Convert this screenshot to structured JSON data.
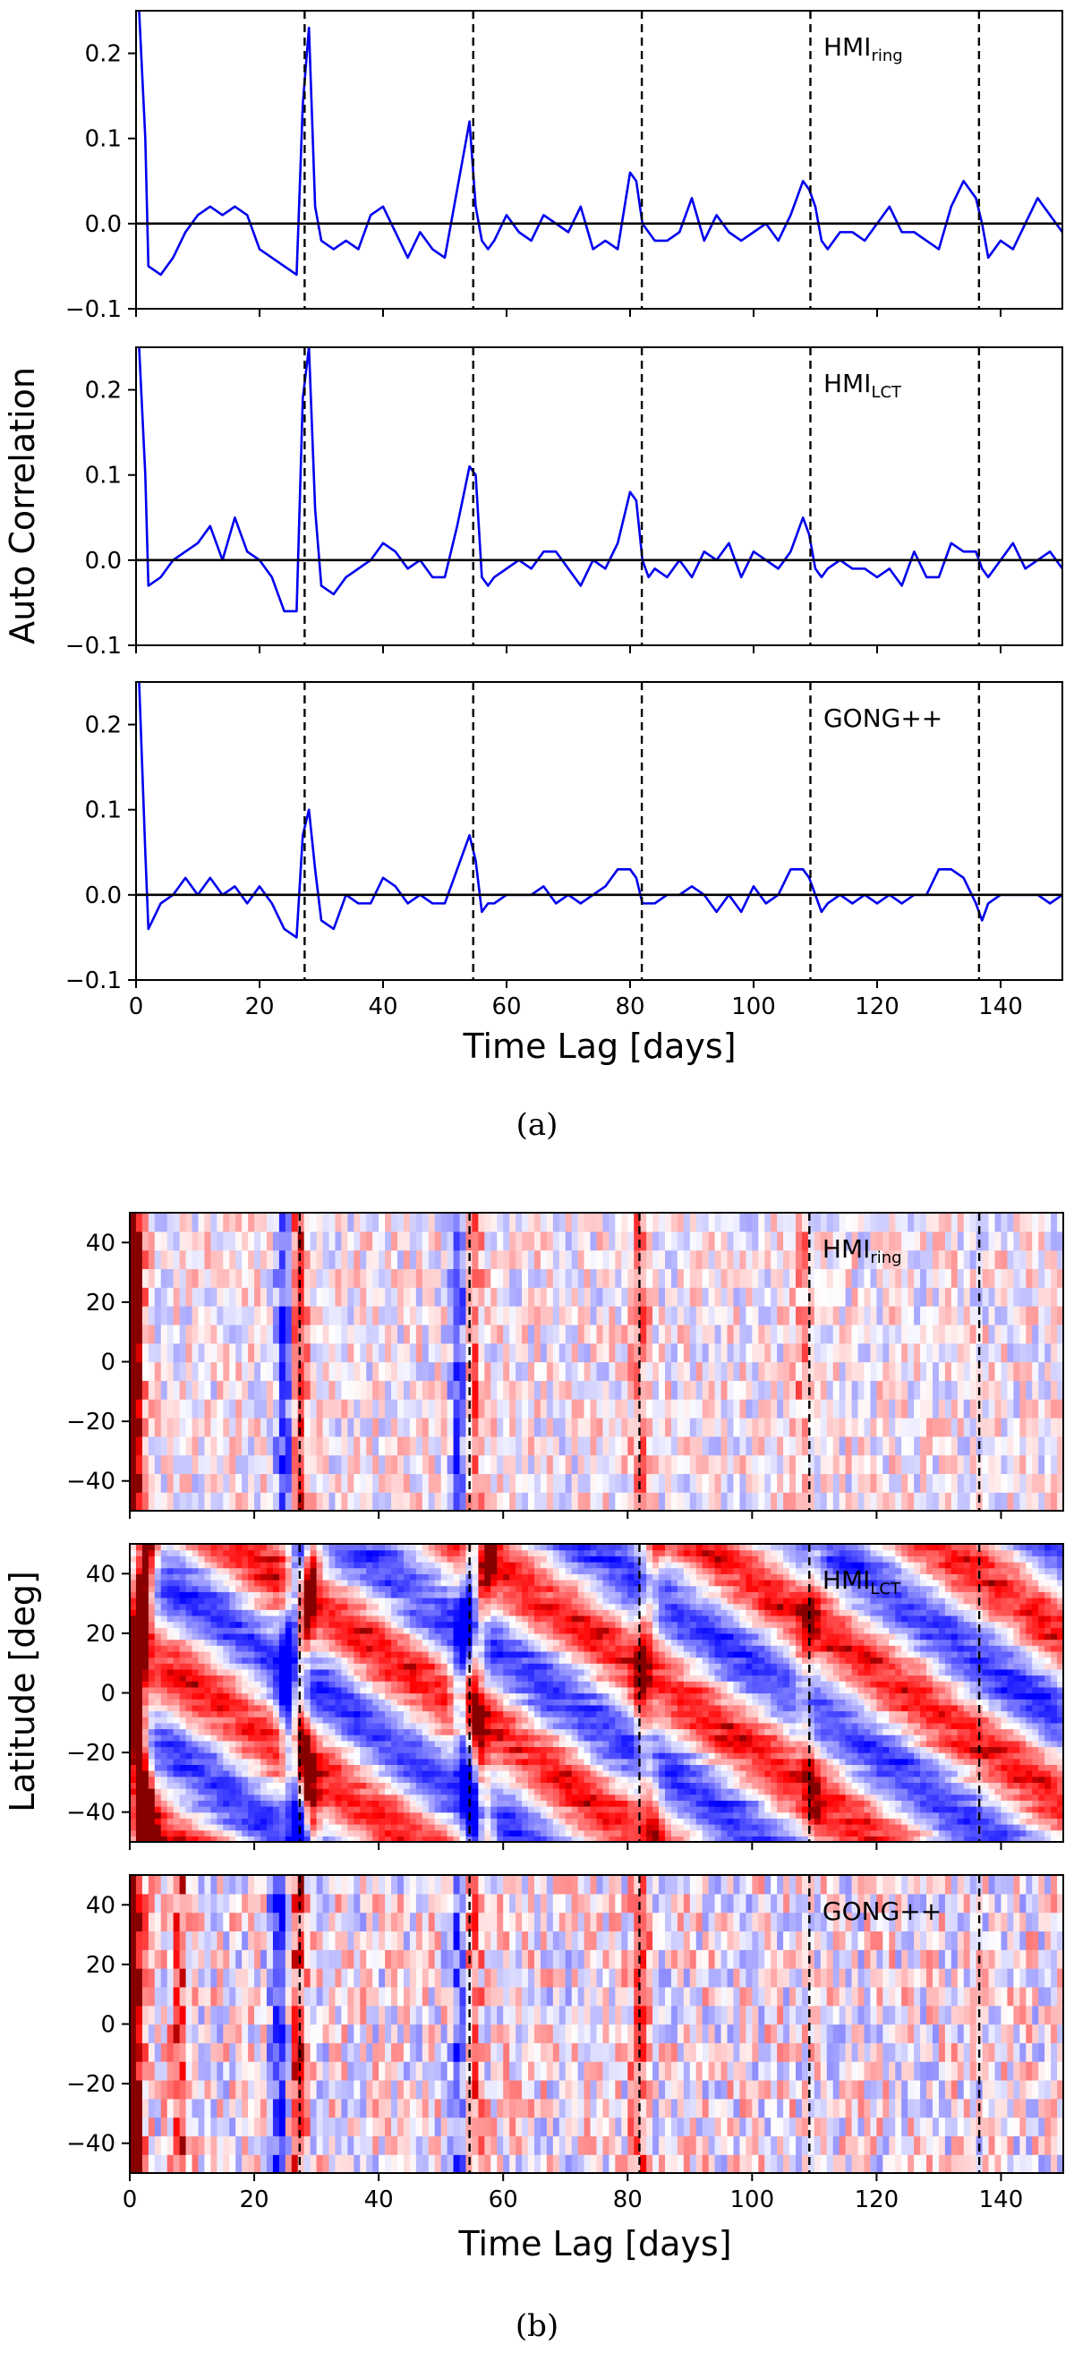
{
  "figure_a": {
    "caption": "(a)",
    "ylabel": "Auto Correlation",
    "xlabel": "Time Lag [days]"
  },
  "figure_b": {
    "caption": "(b)",
    "ylabel": "Latitude [deg]",
    "xlabel": "Time Lag [days]"
  },
  "colors": {
    "line": "#0000ee",
    "zero_line": "#000000",
    "vline": "#000000",
    "heat_positive": "#cc0000",
    "heat_negative": "#0000cc"
  },
  "chart_data": [
    {
      "type": "line",
      "figure": "a",
      "panel_label": {
        "main": "HMI",
        "sub": "ring"
      },
      "xlim": [
        0,
        150
      ],
      "ylim": [
        -0.1,
        0.25
      ],
      "xticks": [
        0,
        20,
        40,
        60,
        80,
        100,
        120,
        140
      ],
      "yticks": [
        -0.1,
        0.0,
        0.1,
        0.2
      ],
      "ytick_labels": [
        "−0.1",
        "0.0",
        "0.1",
        "0.2"
      ],
      "show_x_tick_labels": false,
      "hline": 0.0,
      "vlines": [
        27.3,
        54.6,
        81.9,
        109.2,
        136.5
      ],
      "series": [
        {
          "name": "HMI ring",
          "x": [
            0.5,
            1.5,
            2,
            4,
            6,
            8,
            10,
            12,
            14,
            16,
            18,
            20,
            22,
            24,
            26,
            27,
            28,
            29,
            30,
            32,
            34,
            36,
            38,
            40,
            42,
            44,
            46,
            48,
            50,
            52,
            54,
            55,
            56,
            57,
            58,
            60,
            62,
            64,
            66,
            68,
            70,
            72,
            74,
            76,
            78,
            80,
            81,
            82,
            83,
            84,
            86,
            88,
            90,
            92,
            94,
            96,
            98,
            100,
            102,
            104,
            106,
            108,
            109,
            110,
            111,
            112,
            114,
            116,
            118,
            120,
            122,
            124,
            126,
            128,
            130,
            132,
            134,
            136,
            137,
            138,
            140,
            142,
            144,
            146,
            148,
            150
          ],
          "y": [
            0.25,
            0.1,
            -0.05,
            -0.06,
            -0.04,
            -0.01,
            0.01,
            0.02,
            0.01,
            0.02,
            0.01,
            -0.03,
            -0.04,
            -0.05,
            -0.06,
            0.14,
            0.23,
            0.02,
            -0.02,
            -0.03,
            -0.02,
            -0.03,
            0.01,
            0.02,
            -0.01,
            -0.04,
            -0.01,
            -0.03,
            -0.04,
            0.04,
            0.12,
            0.02,
            -0.02,
            -0.03,
            -0.02,
            0.01,
            -0.01,
            -0.02,
            0.01,
            0.0,
            -0.01,
            0.02,
            -0.03,
            -0.02,
            -0.03,
            0.06,
            0.05,
            0.0,
            -0.01,
            -0.02,
            -0.02,
            -0.01,
            0.03,
            -0.02,
            0.01,
            -0.01,
            -0.02,
            -0.01,
            0.0,
            -0.02,
            0.01,
            0.05,
            0.04,
            0.02,
            -0.02,
            -0.03,
            -0.01,
            -0.01,
            -0.02,
            0.0,
            0.02,
            -0.01,
            -0.01,
            -0.02,
            -0.03,
            0.02,
            0.05,
            0.03,
            0.0,
            -0.04,
            -0.02,
            -0.03,
            0.0,
            0.03,
            0.01,
            -0.01
          ]
        }
      ]
    },
    {
      "type": "line",
      "figure": "a",
      "panel_label": {
        "main": "HMI",
        "sub": "LCT"
      },
      "xlim": [
        0,
        150
      ],
      "ylim": [
        -0.1,
        0.25
      ],
      "xticks": [
        0,
        20,
        40,
        60,
        80,
        100,
        120,
        140
      ],
      "yticks": [
        -0.1,
        0.0,
        0.1,
        0.2
      ],
      "ytick_labels": [
        "−0.1",
        "0.0",
        "0.1",
        "0.2"
      ],
      "show_x_tick_labels": false,
      "hline": 0.0,
      "vlines": [
        27.3,
        54.6,
        81.9,
        109.2,
        136.5
      ],
      "series": [
        {
          "name": "HMI LCT",
          "x": [
            0.5,
            1.5,
            2,
            4,
            6,
            8,
            10,
            12,
            14,
            16,
            18,
            20,
            22,
            24,
            26,
            27,
            28,
            29,
            30,
            32,
            34,
            36,
            38,
            40,
            42,
            44,
            46,
            48,
            50,
            52,
            54,
            55,
            56,
            57,
            58,
            60,
            62,
            64,
            66,
            68,
            70,
            72,
            74,
            76,
            78,
            80,
            81,
            82,
            83,
            84,
            86,
            88,
            90,
            92,
            94,
            96,
            98,
            100,
            102,
            104,
            106,
            108,
            109,
            110,
            111,
            112,
            114,
            116,
            118,
            120,
            122,
            124,
            126,
            128,
            130,
            132,
            134,
            136,
            137,
            138,
            140,
            142,
            144,
            146,
            148,
            150
          ],
          "y": [
            0.25,
            0.1,
            -0.03,
            -0.02,
            0.0,
            0.01,
            0.02,
            0.04,
            0.0,
            0.05,
            0.01,
            0.0,
            -0.02,
            -0.06,
            -0.06,
            0.19,
            0.25,
            0.06,
            -0.03,
            -0.04,
            -0.02,
            -0.01,
            0.0,
            0.02,
            0.01,
            -0.01,
            0.0,
            -0.02,
            -0.02,
            0.04,
            0.11,
            0.1,
            -0.02,
            -0.03,
            -0.02,
            -0.01,
            0.0,
            -0.01,
            0.01,
            0.01,
            -0.01,
            -0.03,
            0.0,
            -0.01,
            0.02,
            0.08,
            0.07,
            0.0,
            -0.02,
            -0.01,
            -0.02,
            0.0,
            -0.02,
            0.01,
            0.0,
            0.02,
            -0.02,
            0.01,
            0.0,
            -0.01,
            0.01,
            0.05,
            0.03,
            -0.01,
            -0.02,
            -0.01,
            0.0,
            -0.01,
            -0.01,
            -0.02,
            -0.01,
            -0.03,
            0.01,
            -0.02,
            -0.02,
            0.02,
            0.01,
            0.01,
            -0.01,
            -0.02,
            0.0,
            0.02,
            -0.01,
            0.0,
            0.01,
            -0.01
          ]
        }
      ]
    },
    {
      "type": "line",
      "figure": "a",
      "panel_label": {
        "main": "GONG++",
        "sub": ""
      },
      "xlim": [
        0,
        150
      ],
      "ylim": [
        -0.1,
        0.25
      ],
      "xticks": [
        0,
        20,
        40,
        60,
        80,
        100,
        120,
        140
      ],
      "xtick_labels": [
        "0",
        "20",
        "40",
        "60",
        "80",
        "100",
        "120",
        "140"
      ],
      "yticks": [
        -0.1,
        0.0,
        0.1,
        0.2
      ],
      "ytick_labels": [
        "−0.1",
        "0.0",
        "0.1",
        "0.2"
      ],
      "show_x_tick_labels": true,
      "hline": 0.0,
      "vlines": [
        27.3,
        54.6,
        81.9,
        109.2,
        136.5
      ],
      "series": [
        {
          "name": "GONG++",
          "x": [
            0.5,
            1.5,
            2,
            4,
            6,
            8,
            10,
            12,
            14,
            16,
            18,
            20,
            22,
            24,
            26,
            27,
            28,
            29,
            30,
            32,
            34,
            36,
            38,
            40,
            42,
            44,
            46,
            48,
            50,
            52,
            54,
            55,
            56,
            57,
            58,
            60,
            62,
            64,
            66,
            68,
            70,
            72,
            74,
            76,
            78,
            80,
            81,
            82,
            83,
            84,
            86,
            88,
            90,
            92,
            94,
            96,
            98,
            100,
            102,
            104,
            106,
            108,
            109,
            110,
            111,
            112,
            114,
            116,
            118,
            120,
            122,
            124,
            126,
            128,
            130,
            132,
            134,
            136,
            137,
            138,
            140,
            142,
            144,
            146,
            148,
            150
          ],
          "y": [
            0.25,
            0.05,
            -0.04,
            -0.01,
            0.0,
            0.02,
            0.0,
            0.02,
            0.0,
            0.01,
            -0.01,
            0.01,
            -0.01,
            -0.04,
            -0.05,
            0.07,
            0.1,
            0.03,
            -0.03,
            -0.04,
            0.0,
            -0.01,
            -0.01,
            0.02,
            0.01,
            -0.01,
            0.0,
            -0.01,
            -0.01,
            0.03,
            0.07,
            0.04,
            -0.02,
            -0.01,
            -0.01,
            0.0,
            0.0,
            0.0,
            0.01,
            -0.01,
            0.0,
            -0.01,
            0.0,
            0.01,
            0.03,
            0.03,
            0.02,
            -0.01,
            -0.01,
            -0.01,
            0.0,
            0.0,
            0.01,
            0.0,
            -0.02,
            0.0,
            -0.02,
            0.01,
            -0.01,
            0.0,
            0.03,
            0.03,
            0.02,
            0.0,
            -0.02,
            -0.01,
            0.0,
            -0.01,
            0.0,
            -0.01,
            0.0,
            -0.01,
            0.0,
            0.0,
            0.03,
            0.03,
            0.02,
            -0.01,
            -0.03,
            -0.01,
            0.0,
            0.0,
            0.0,
            0.0,
            -0.01,
            0.0
          ]
        }
      ]
    },
    {
      "type": "heatmap",
      "figure": "b",
      "panel_label": {
        "main": "HMI",
        "sub": "ring"
      },
      "xlim": [
        0,
        150
      ],
      "ylim": [
        -50,
        50
      ],
      "xticks": [
        0,
        20,
        40,
        60,
        80,
        100,
        120,
        140
      ],
      "yticks": [
        -40,
        -20,
        0,
        20,
        40
      ],
      "ytick_labels": [
        "−40",
        "−20",
        "0",
        "20",
        "40"
      ],
      "show_x_tick_labels": false,
      "vlines": [
        27.3,
        54.6,
        81.9,
        109.2,
        136.5
      ],
      "colormap": "bwr",
      "n_lag_bins": 150,
      "n_lat_bins": 16,
      "band_lags": [
        0,
        1,
        25,
        27,
        53,
        55,
        82,
        108
      ],
      "band_values": [
        1.0,
        0.7,
        -0.9,
        0.8,
        -0.8,
        0.6,
        0.45,
        0.35
      ],
      "noise": 0.35,
      "smooth": false
    },
    {
      "type": "heatmap",
      "figure": "b",
      "panel_label": {
        "main": "HMI",
        "sub": "LCT"
      },
      "xlim": [
        0,
        150
      ],
      "ylim": [
        -50,
        50
      ],
      "xticks": [
        0,
        20,
        40,
        60,
        80,
        100,
        120,
        140
      ],
      "yticks": [
        -40,
        -20,
        0,
        20,
        40
      ],
      "ytick_labels": [
        "−40",
        "−20",
        "0",
        "20",
        "40"
      ],
      "show_x_tick_labels": false,
      "vlines": [
        27.3,
        54.6,
        81.9,
        109.2,
        136.5
      ],
      "colormap": "bwr",
      "n_lag_bins": 150,
      "n_lat_bins": 50,
      "band_lags": [
        0,
        1,
        25,
        27,
        53,
        55,
        82,
        108
      ],
      "band_values": [
        1.0,
        0.8,
        -1.0,
        0.8,
        -0.9,
        0.7,
        0.55,
        0.35
      ],
      "noise": 0.3,
      "smooth": true
    },
    {
      "type": "heatmap",
      "figure": "b",
      "panel_label": {
        "main": "GONG++",
        "sub": ""
      },
      "xlim": [
        0,
        150
      ],
      "ylim": [
        -50,
        50
      ],
      "xticks": [
        0,
        20,
        40,
        60,
        80,
        100,
        120,
        140
      ],
      "xtick_labels": [
        "0",
        "20",
        "40",
        "60",
        "80",
        "100",
        "120",
        "140"
      ],
      "yticks": [
        -40,
        -20,
        0,
        20,
        40
      ],
      "ytick_labels": [
        "−40",
        "−20",
        "0",
        "20",
        "40"
      ],
      "show_x_tick_labels": true,
      "vlines": [
        27.3,
        54.6,
        81.9,
        109.2,
        136.5
      ],
      "colormap": "bwr",
      "n_lag_bins": 150,
      "n_lat_bins": 16,
      "band_lags": [
        0,
        1,
        8,
        24,
        27,
        53,
        55,
        82
      ],
      "band_values": [
        1.0,
        0.7,
        0.6,
        -0.9,
        0.7,
        -0.8,
        0.6,
        0.5
      ],
      "noise": 0.45,
      "smooth": false
    }
  ]
}
